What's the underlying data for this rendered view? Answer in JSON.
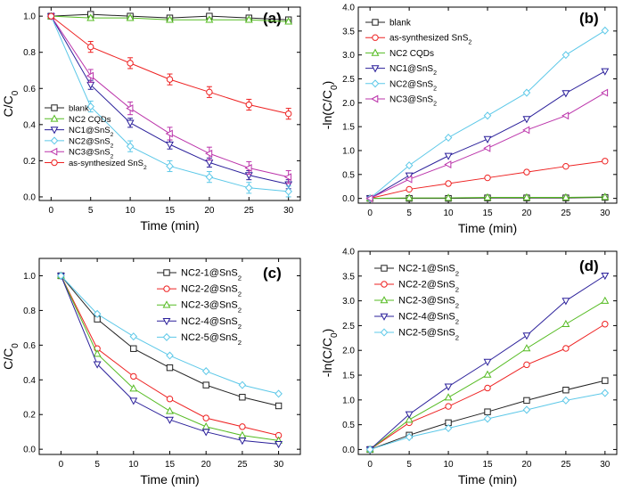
{
  "figure": {
    "colors": {
      "black": "#222222",
      "red": "#ee2222",
      "green": "#55bb22",
      "navy": "#2a1f9a",
      "cyan": "#5cc8e8",
      "magenta": "#bb33aa"
    }
  },
  "chart_data": [
    {
      "id": "a",
      "label": "(a)",
      "type": "line",
      "title": "",
      "xlabel": "Time (min)",
      "ylabel_parts": [
        "C/C",
        "0"
      ],
      "xlim": [
        -1.5,
        31.5
      ],
      "ylim": [
        -0.02,
        1.05
      ],
      "xticks": [
        "0",
        "5",
        "10",
        "15",
        "20",
        "25",
        "30"
      ],
      "xtick_values": [
        0,
        5,
        10,
        15,
        20,
        25,
        30
      ],
      "yticks": [
        "0.0",
        "0.2",
        "0.4",
        "0.6",
        "0.8",
        "1.0"
      ],
      "ytick_values": [
        0,
        0.2,
        0.4,
        0.6,
        0.8,
        1.0
      ],
      "legend_pos": "bottom-left",
      "x": [
        0,
        5,
        10,
        15,
        20,
        25,
        30
      ],
      "series": [
        {
          "name": "blank",
          "label": [
            "blank"
          ],
          "color": "#222222",
          "marker": "square",
          "values": [
            1.0,
            1.01,
            1.0,
            0.99,
            1.0,
            0.99,
            0.98
          ],
          "err": 0.01
        },
        {
          "name": "NC2 CQDs",
          "label": [
            "NC2 CQDs"
          ],
          "color": "#55bb22",
          "marker": "triangle",
          "values": [
            1.0,
            0.99,
            0.99,
            0.98,
            0.98,
            0.98,
            0.97
          ],
          "err": 0.01
        },
        {
          "name": "NC1@SnS2",
          "label": [
            "NC1@SnS",
            "2"
          ],
          "color": "#2a1f9a",
          "marker": "tridown",
          "values": [
            1.0,
            0.62,
            0.41,
            0.29,
            0.19,
            0.12,
            0.07
          ],
          "err": 0.025
        },
        {
          "name": "NC2@SnS2",
          "label": [
            "NC2@SnS",
            "2"
          ],
          "color": "#5cc8e8",
          "marker": "diamond",
          "values": [
            1.0,
            0.5,
            0.28,
            0.17,
            0.11,
            0.05,
            0.03
          ],
          "err": 0.03
        },
        {
          "name": "NC3@SnS2",
          "label": [
            "NC3@SnS",
            "2"
          ],
          "color": "#bb33aa",
          "marker": "trileft",
          "values": [
            1.0,
            0.67,
            0.49,
            0.35,
            0.24,
            0.16,
            0.11
          ],
          "err": 0.035
        },
        {
          "name": "as-synthesized SnS2",
          "label": [
            "as-synthesized SnS",
            "2"
          ],
          "color": "#ee2222",
          "marker": "circle",
          "values": [
            1.0,
            0.83,
            0.74,
            0.65,
            0.58,
            0.51,
            0.46
          ],
          "err": 0.03
        }
      ]
    },
    {
      "id": "b",
      "label": "(b)",
      "type": "line",
      "title": "",
      "xlabel": "Time (min)",
      "ylabel_parts": [
        "-ln(C/C",
        "0",
        ")"
      ],
      "xlim": [
        -1.5,
        31.5
      ],
      "ylim": [
        -0.1,
        4.0
      ],
      "xticks": [
        "0",
        "5",
        "10",
        "15",
        "20",
        "25",
        "30"
      ],
      "xtick_values": [
        0,
        5,
        10,
        15,
        20,
        25,
        30
      ],
      "yticks": [
        "0.0",
        "0.5",
        "1.0",
        "1.5",
        "2.0",
        "2.5",
        "3.0",
        "3.5",
        "4.0"
      ],
      "ytick_values": [
        0,
        0.5,
        1,
        1.5,
        2,
        2.5,
        3,
        3.5,
        4
      ],
      "legend_pos": "top-left",
      "x": [
        0,
        5,
        10,
        15,
        20,
        25,
        30
      ],
      "series": [
        {
          "name": "blank",
          "label": [
            "blank"
          ],
          "color": "#222222",
          "marker": "square",
          "values": [
            0,
            0,
            0,
            0.01,
            0.01,
            0.01,
            0.02
          ]
        },
        {
          "name": "as-synthesized SnS2",
          "label": [
            "as-synthesized SnS",
            "2"
          ],
          "color": "#ee2222",
          "marker": "circle",
          "values": [
            0,
            0.19,
            0.31,
            0.43,
            0.55,
            0.67,
            0.78
          ]
        },
        {
          "name": "NC2 CQDs",
          "label": [
            "NC2 CQDs"
          ],
          "color": "#55bb22",
          "marker": "triangle",
          "values": [
            0,
            0.01,
            0.01,
            0.02,
            0.02,
            0.02,
            0.03
          ]
        },
        {
          "name": "NC1@SnS2",
          "label": [
            "NC1@SnS",
            "2"
          ],
          "color": "#2a1f9a",
          "marker": "tridown",
          "values": [
            0,
            0.48,
            0.89,
            1.24,
            1.66,
            2.2,
            2.66
          ]
        },
        {
          "name": "NC2@SnS2",
          "label": [
            "NC2@SnS",
            "2"
          ],
          "color": "#5cc8e8",
          "marker": "diamond",
          "values": [
            0,
            0.69,
            1.27,
            1.73,
            2.21,
            3.0,
            3.51
          ]
        },
        {
          "name": "NC3@SnS2",
          "label": [
            "NC3@SnS",
            "2"
          ],
          "color": "#bb33aa",
          "marker": "trileft",
          "values": [
            0,
            0.4,
            0.71,
            1.05,
            1.43,
            1.73,
            2.21
          ]
        }
      ]
    },
    {
      "id": "c",
      "label": "(c)",
      "type": "line",
      "title": "",
      "xlabel": "Time (min)",
      "ylabel_parts": [
        "C/C",
        "0"
      ],
      "xlim": [
        -3,
        33
      ],
      "ylim": [
        -0.03,
        1.1
      ],
      "xticks": [
        "0",
        "5",
        "10",
        "15",
        "20",
        "25",
        "30"
      ],
      "xtick_values": [
        0,
        5,
        10,
        15,
        20,
        25,
        30
      ],
      "yticks": [
        "0.0",
        "0.2",
        "0.4",
        "0.6",
        "0.8",
        "1.0"
      ],
      "ytick_values": [
        0,
        0.2,
        0.4,
        0.6,
        0.8,
        1.0
      ],
      "legend_pos": "top-right",
      "x": [
        0,
        5,
        10,
        15,
        20,
        25,
        30
      ],
      "series": [
        {
          "name": "NC2-1@SnS2",
          "label": [
            "NC2-1@SnS",
            "2"
          ],
          "color": "#222222",
          "marker": "square",
          "values": [
            1.0,
            0.75,
            0.58,
            0.47,
            0.37,
            0.3,
            0.25
          ]
        },
        {
          "name": "NC2-2@SnS2",
          "label": [
            "NC2-2@SnS",
            "2"
          ],
          "color": "#ee2222",
          "marker": "circle",
          "values": [
            1.0,
            0.58,
            0.42,
            0.29,
            0.18,
            0.13,
            0.08
          ]
        },
        {
          "name": "NC2-3@SnS2",
          "label": [
            "NC2-3@SnS",
            "2"
          ],
          "color": "#55bb22",
          "marker": "triangle",
          "values": [
            1.0,
            0.55,
            0.35,
            0.22,
            0.13,
            0.08,
            0.05
          ]
        },
        {
          "name": "NC2-4@SnS2",
          "label": [
            "NC2-4@SnS",
            "2"
          ],
          "color": "#2a1f9a",
          "marker": "tridown",
          "values": [
            1.0,
            0.49,
            0.28,
            0.17,
            0.1,
            0.05,
            0.03
          ]
        },
        {
          "name": "NC2-5@SnS2",
          "label": [
            "NC2-5@SnS",
            "2"
          ],
          "color": "#5cc8e8",
          "marker": "diamond",
          "values": [
            1.0,
            0.78,
            0.65,
            0.54,
            0.45,
            0.37,
            0.32
          ]
        }
      ]
    },
    {
      "id": "d",
      "label": "(d)",
      "type": "line",
      "title": "",
      "xlabel": "Time (min)",
      "ylabel_parts": [
        "-ln(C/C",
        "0",
        ")"
      ],
      "xlim": [
        -1.5,
        31.5
      ],
      "ylim": [
        -0.1,
        4.0
      ],
      "xticks": [
        "0",
        "5",
        "10",
        "15",
        "20",
        "25",
        "30"
      ],
      "xtick_values": [
        0,
        5,
        10,
        15,
        20,
        25,
        30
      ],
      "yticks": [
        "0.0",
        "0.5",
        "1.0",
        "1.5",
        "2.0",
        "2.5",
        "3.0",
        "3.5",
        "4.0"
      ],
      "ytick_values": [
        0,
        0.5,
        1,
        1.5,
        2,
        2.5,
        3,
        3.5,
        4
      ],
      "legend_pos": "top-left",
      "x": [
        0,
        5,
        10,
        15,
        20,
        25,
        30
      ],
      "series": [
        {
          "name": "NC2-1@SnS2",
          "label": [
            "NC2-1@SnS",
            "2"
          ],
          "color": "#222222",
          "marker": "square",
          "values": [
            0,
            0.29,
            0.54,
            0.76,
            0.99,
            1.2,
            1.39
          ]
        },
        {
          "name": "NC2-2@SnS2",
          "label": [
            "NC2-2@SnS",
            "2"
          ],
          "color": "#ee2222",
          "marker": "circle",
          "values": [
            0,
            0.54,
            0.87,
            1.24,
            1.71,
            2.04,
            2.53
          ]
        },
        {
          "name": "NC2-3@SnS2",
          "label": [
            "NC2-3@SnS",
            "2"
          ],
          "color": "#55bb22",
          "marker": "triangle",
          "values": [
            0,
            0.6,
            1.05,
            1.51,
            2.04,
            2.53,
            3.0
          ]
        },
        {
          "name": "NC2-4@SnS2",
          "label": [
            "NC2-4@SnS",
            "2"
          ],
          "color": "#2a1f9a",
          "marker": "tridown",
          "values": [
            0,
            0.71,
            1.27,
            1.77,
            2.3,
            3.0,
            3.51
          ]
        },
        {
          "name": "NC2-5@SnS2",
          "label": [
            "NC2-5@SnS",
            "2"
          ],
          "color": "#5cc8e8",
          "marker": "diamond",
          "values": [
            0,
            0.25,
            0.43,
            0.62,
            0.8,
            0.99,
            1.14
          ]
        }
      ]
    }
  ]
}
